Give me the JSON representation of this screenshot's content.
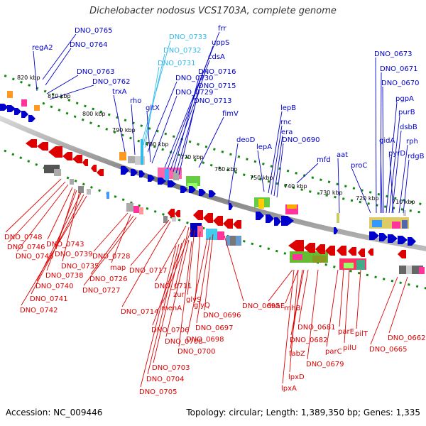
{
  "title": "Dichelobacter nodosus VCS1703A, complete genome",
  "accession": "Accession: NC_009446",
  "summary": "Topology: circular; Length: 1,389,350 bp; Genes: 1,335",
  "colors": {
    "forward": "#0000cc",
    "reverse": "#dd0000",
    "highlight": "#33bbee",
    "backbone": "#888888",
    "ticks": "#118811"
  },
  "kbp_ticks": [
    "820 kbp",
    "810 kbp",
    "800 kbp",
    "790 kbp",
    "780 kbp",
    "770 kbp",
    "760 kbp",
    "750 kbp",
    "740 kbp",
    "730 kbp",
    "720 kbp",
    "710 kbp"
  ],
  "forward_labels": [
    "regA2",
    "DNO_0765",
    "DNO_0764",
    "DNO_0763",
    "DNO_0762",
    "trxA",
    "rho",
    "DNO_0733",
    "DNO_0732",
    "DNO_0731",
    "DNO_0730",
    "gltX",
    "DNO_0729",
    "frr",
    "uppS",
    "cdsA",
    "DNO_0716",
    "DNO_0715",
    "DNO_0713",
    "fimV",
    "deoD",
    "lepB",
    "rnc",
    "era",
    "lepA",
    "DNO_0690",
    "mfd",
    "aat",
    "proC",
    "DNO_0673",
    "DNO_0671",
    "DNO_0670",
    "pgpA",
    "purB",
    "dsbB",
    "gidA",
    "pyrD",
    "rph",
    "rdgB"
  ],
  "reverse_labels": [
    "DNO_0748",
    "DNO_0746",
    "DNO_0745",
    "DNO_0743",
    "DNO_0739",
    "DNO_0738",
    "DNO_0735",
    "DNO_0740",
    "DNO_0741",
    "DNO_0742",
    "DNO_0728",
    "map",
    "DNO_0726",
    "DNO_0727",
    "DNO_0717",
    "DNO_0714",
    "DNO_0711",
    "zur",
    "menA",
    "glyS",
    "glyQ",
    "DNO_0696",
    "DNO_0695",
    "DNO_0697",
    "DNO_0698",
    "DNO_0706",
    "DNO_0708",
    "DNO_0700",
    "DNO_0703",
    "DNO_0704",
    "DNO_0705",
    "dnaE",
    "rnhB",
    "DNO_0681",
    "DNO_0682",
    "parE",
    "pilT",
    "pilU",
    "parC",
    "DNO_0679",
    "fabZ",
    "lpxD",
    "lpxA",
    "DNO_0662",
    "DNO_0665"
  ]
}
